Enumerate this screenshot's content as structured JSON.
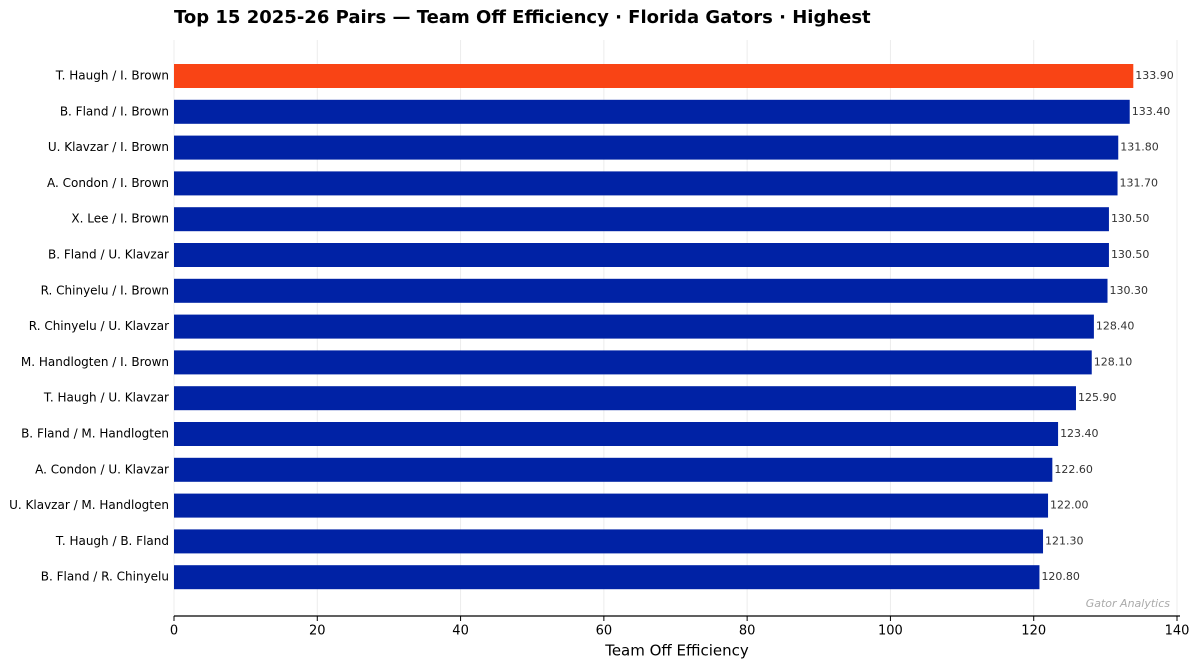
{
  "chart_data": {
    "type": "barh",
    "title": "Top 15 2025-26 Pairs — Team Off Efficiency  ·  Florida Gators  ·  Highest",
    "x_label": "Team Off Efficiency",
    "watermark": "Gator Analytics",
    "categories": [
      "T. Haugh / I. Brown",
      "B. Fland / I. Brown",
      "U. Klavzar / I. Brown",
      "A. Condon / I. Brown",
      "X. Lee / I. Brown",
      "B. Fland / U. Klavzar",
      "R. Chinyelu / I. Brown",
      "R. Chinyelu / U. Klavzar",
      "M. Handlogten / I. Brown",
      "T. Haugh / U. Klavzar",
      "B. Fland / M. Handlogten",
      "A. Condon / U. Klavzar",
      "U. Klavzar / M. Handlogten",
      "T. Haugh / B. Fland",
      "B. Fland / R. Chinyelu"
    ],
    "values": [
      133.9,
      133.4,
      131.8,
      131.7,
      130.5,
      130.5,
      130.3,
      128.4,
      128.1,
      125.9,
      123.4,
      122.6,
      122.0,
      121.3,
      120.8
    ],
    "value_labels": [
      "133.90",
      "133.40",
      "131.80",
      "131.70",
      "130.50",
      "130.50",
      "130.30",
      "128.40",
      "128.10",
      "125.90",
      "123.40",
      "122.60",
      "122.00",
      "121.30",
      "120.80"
    ],
    "colors": [
      "#f94415",
      "#0022a5",
      "#0022a5",
      "#0022a5",
      "#0022a5",
      "#0022a5",
      "#0022a5",
      "#0022a5",
      "#0022a5",
      "#0022a5",
      "#0022a5",
      "#0022a5",
      "#0022a5",
      "#0022a5",
      "#0022a5"
    ],
    "xlim": [
      0,
      140
    ],
    "xticks": [
      0,
      20,
      40,
      60,
      80,
      100,
      120,
      140
    ],
    "grid": true
  }
}
